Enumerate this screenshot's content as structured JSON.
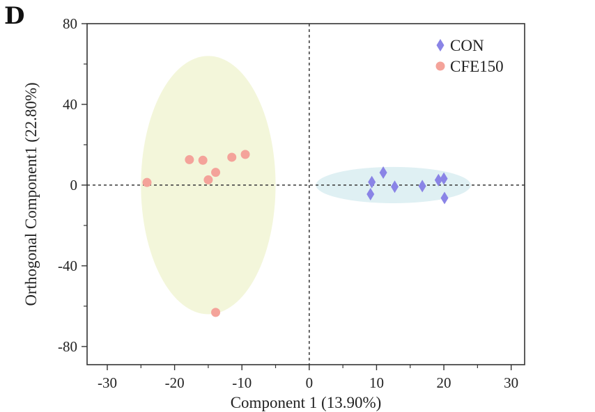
{
  "chart_data": {
    "type": "scatter",
    "panel_label": "D",
    "xlabel": "Component 1 (13.90%)",
    "ylabel": "Orthogonal Component1 (22.80%)",
    "xlim": [
      -33,
      32
    ],
    "ylim": [
      -89,
      80
    ],
    "xticks": [
      -30,
      -20,
      -10,
      0,
      10,
      20,
      30
    ],
    "yticks": [
      80,
      40,
      0,
      -40,
      -80
    ],
    "x_minor_ticks": [
      -25,
      -15,
      -5,
      5,
      15,
      25
    ],
    "y_minor_ticks": [
      60,
      20,
      -20,
      -60
    ],
    "zero_lines": true,
    "legend_position": "top-right",
    "series": [
      {
        "name": "CON",
        "marker": "diamond",
        "color": "#8a84e6",
        "ellipse": {
          "cx": 12.5,
          "cy": 0,
          "rx": 11.5,
          "ry": 9,
          "color": "#dff0f3"
        },
        "points": [
          {
            "x": 9.3,
            "y": 1.5
          },
          {
            "x": 9.1,
            "y": -4.5
          },
          {
            "x": 11.0,
            "y": 6.2
          },
          {
            "x": 12.7,
            "y": -0.8
          },
          {
            "x": 16.8,
            "y": -0.5
          },
          {
            "x": 19.2,
            "y": 2.5
          },
          {
            "x": 20.0,
            "y": 3.2
          },
          {
            "x": 20.1,
            "y": -6.4
          }
        ]
      },
      {
        "name": "CFE150",
        "marker": "circle",
        "color": "#f4a39a",
        "ellipse": {
          "cx": -15,
          "cy": 0,
          "rx": 10,
          "ry": 64,
          "color": "#f3f6da"
        },
        "points": [
          {
            "x": -24.1,
            "y": 1.3
          },
          {
            "x": -17.8,
            "y": 12.6
          },
          {
            "x": -15.8,
            "y": 12.3
          },
          {
            "x": -15.0,
            "y": 2.6
          },
          {
            "x": -13.9,
            "y": 6.3
          },
          {
            "x": -11.5,
            "y": 13.8
          },
          {
            "x": -9.5,
            "y": 15.2
          },
          {
            "x": -13.9,
            "y": -63.1
          }
        ]
      }
    ]
  }
}
